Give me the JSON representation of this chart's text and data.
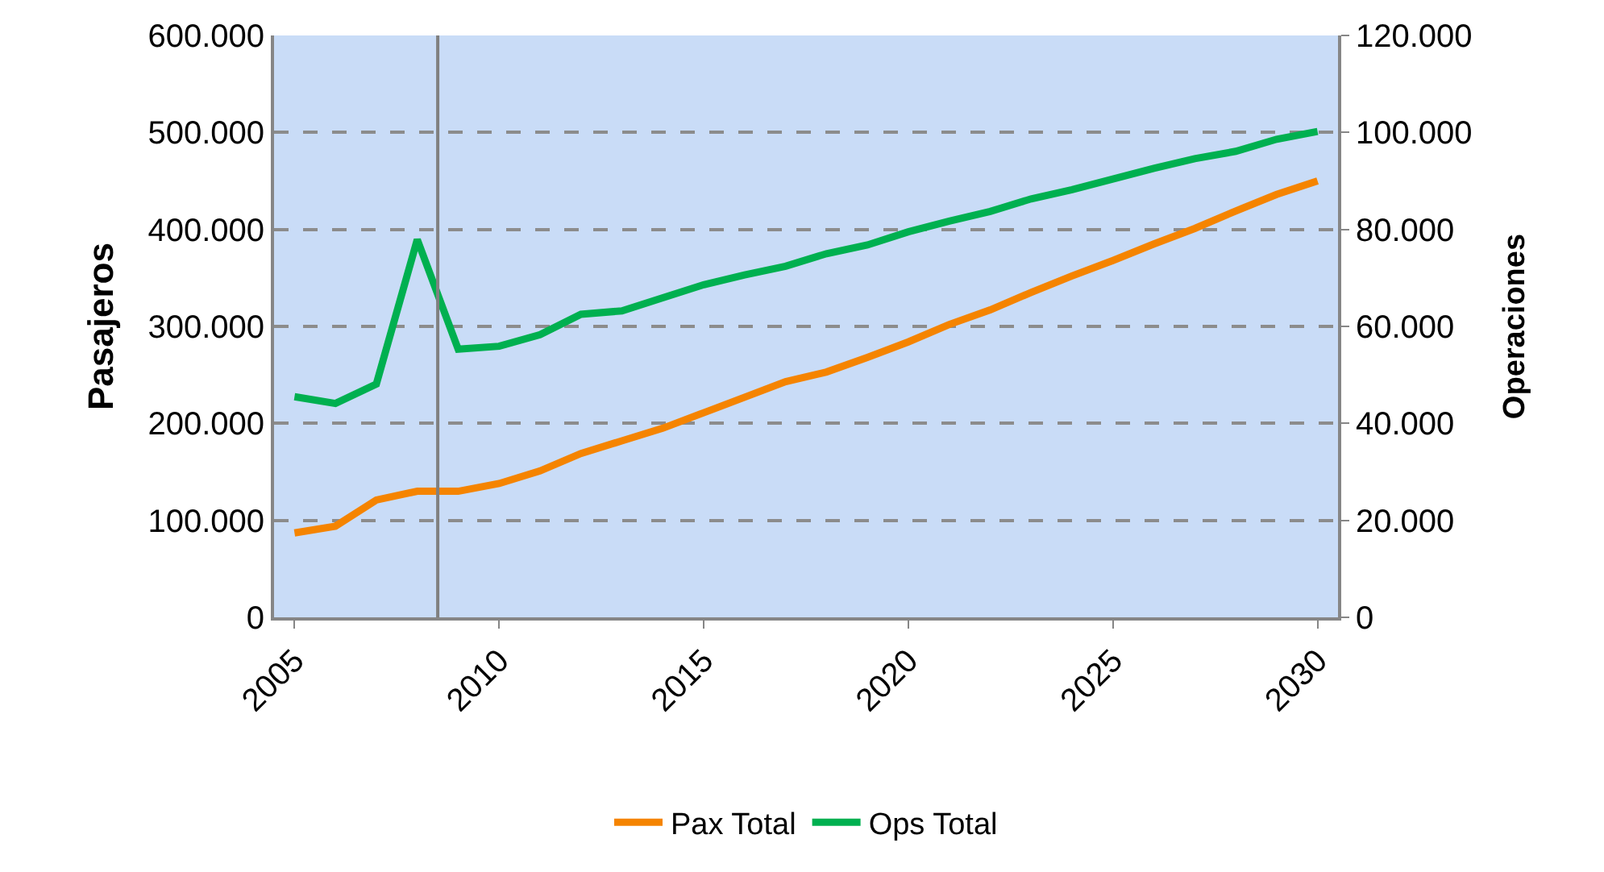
{
  "chart_data": {
    "type": "line",
    "ylabel": "Pasajeros",
    "y2label": "Operaciones",
    "x": [
      2005,
      2006,
      2007,
      2008,
      2009,
      2010,
      2011,
      2012,
      2013,
      2014,
      2015,
      2016,
      2017,
      2018,
      2019,
      2020,
      2021,
      2022,
      2023,
      2024,
      2025,
      2026,
      2027,
      2028,
      2029,
      2030
    ],
    "xlim": [
      2004.5,
      2030.5
    ],
    "xticks": [
      2005,
      2010,
      2015,
      2020,
      2025,
      2030
    ],
    "ylim": [
      0,
      600000
    ],
    "yticks": [
      0,
      {
        "value": 100000,
        "label": "100.000"
      },
      {
        "value": 200000,
        "label": "200.000"
      },
      {
        "value": 300000,
        "label": "300.000"
      },
      {
        "value": 400000,
        "label": "400.000"
      },
      {
        "value": 500000,
        "label": "500.000"
      },
      {
        "value": 600000,
        "label": "600.000"
      }
    ],
    "y2lim": [
      0,
      120000
    ],
    "y2ticks": [
      0,
      {
        "value": 20000,
        "label": "20.000"
      },
      {
        "value": 40000,
        "label": "40.000"
      },
      {
        "value": 60000,
        "label": "60.000"
      },
      {
        "value": 80000,
        "label": "80.000"
      },
      {
        "value": 100000,
        "label": "100.000"
      },
      {
        "value": 120000,
        "label": "120.000"
      }
    ],
    "series": [
      {
        "name": "Pax Total",
        "color": "#f58400",
        "values": [
          87000,
          94000,
          121000,
          130000,
          130000,
          138000,
          151000,
          169000,
          182000,
          195000,
          211000,
          227000,
          243000,
          253000,
          268000,
          284000,
          302000,
          317000,
          335000,
          352000,
          368000,
          385000,
          401000,
          419000,
          436000,
          450000
        ]
      },
      {
        "name": "Ops Total",
        "color": "#00b050",
        "axis": "y2",
        "values": [
          45500,
          44100,
          48100,
          77900,
          55300,
          55900,
          58300,
          62500,
          63200,
          65900,
          68600,
          70600,
          72400,
          75000,
          76800,
          79500,
          81700,
          83700,
          86300,
          88200,
          90400,
          92600,
          94600,
          96100,
          98600,
          100200
        ]
      }
    ],
    "ref_lines": [
      {
        "axis": "x",
        "value": 2008.5,
        "color": "#808080"
      }
    ],
    "grid": "y",
    "legend": "bottom",
    "marker": "none",
    "line_style": "solid"
  }
}
